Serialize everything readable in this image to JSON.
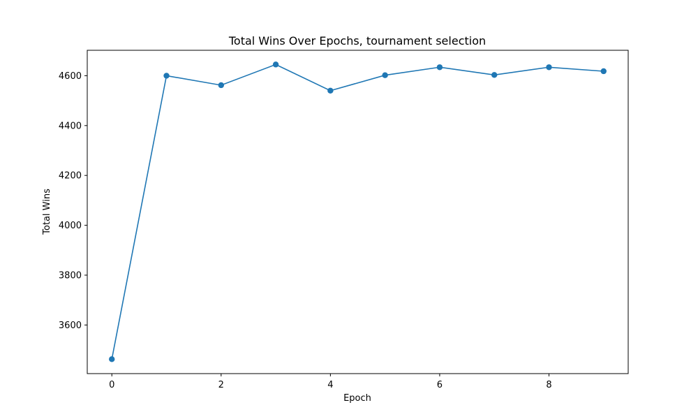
{
  "chart_data": {
    "type": "line",
    "title": "Total Wins Over Epochs, tournament selection",
    "xlabel": "Epoch",
    "ylabel": "Total Wins",
    "x": [
      0,
      1,
      2,
      3,
      4,
      5,
      6,
      7,
      8,
      9
    ],
    "series": [
      {
        "values": [
          3463,
          4600,
          4562,
          4645,
          4540,
          4602,
          4634,
          4603,
          4634,
          4618
        ],
        "color": "#1f77b4",
        "marker": "circle"
      }
    ],
    "xlim": [
      -0.45,
      9.45
    ],
    "ylim": [
      3405,
      4702
    ],
    "xticks": [
      0,
      2,
      4,
      6,
      8
    ],
    "yticks": [
      3600,
      3800,
      4000,
      4200,
      4400,
      4600
    ],
    "grid": false,
    "legend": false
  }
}
